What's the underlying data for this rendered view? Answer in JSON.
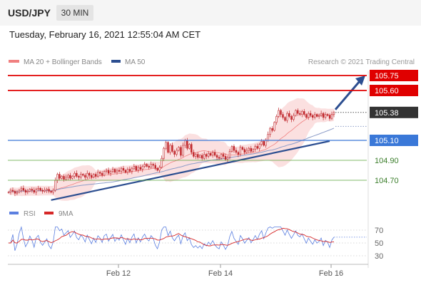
{
  "header": {
    "pair": "USD/JPY",
    "timeframe": "30 MIN"
  },
  "datetime": "Tuesday, February 16, 2021 12:55:04 AM CET",
  "legend": {
    "ma_label": "MA 20 + Bollinger Bands",
    "ma50_label": "MA 50",
    "credit": "Research © 2021 Trading Central",
    "rsi_label": "RSI",
    "rsi_ma_label": "9MA"
  },
  "colors": {
    "resistance": "#e00000",
    "support": "#3a78d8",
    "target": "#5aa53a",
    "price": "#333333",
    "bollinger_fill": "#fadada",
    "ma20": "#f08080",
    "ma50": "#8c9cc8",
    "trendline": "#2c4e90",
    "rsi": "#5b7fe0",
    "rsi_ma": "#d62828",
    "candle": "#c0282d"
  },
  "chart_data": [
    {
      "type": "candlestick",
      "title": "USD/JPY",
      "x_ticks": [
        "Feb 12",
        "Feb 14",
        "Feb 16"
      ],
      "ylim": [
        104.52,
        105.82
      ],
      "levels": [
        {
          "label": "105.75",
          "value": 105.75,
          "kind": "resistance"
        },
        {
          "label": "105.60",
          "value": 105.6,
          "kind": "resistance"
        },
        {
          "label": "105.38",
          "value": 105.38,
          "kind": "price"
        },
        {
          "label": "105.10",
          "value": 105.1,
          "kind": "support"
        },
        {
          "label": "104.90",
          "value": 104.9,
          "kind": "target"
        },
        {
          "label": "104.70",
          "value": 104.7,
          "kind": "target"
        }
      ],
      "close_series": [
        104.58,
        104.6,
        104.59,
        104.57,
        104.58,
        104.6,
        104.62,
        104.6,
        104.58,
        104.59,
        104.61,
        104.6,
        104.58,
        104.61,
        104.62,
        104.6,
        104.59,
        104.6,
        104.61,
        104.59,
        104.58,
        104.6,
        104.7,
        104.76,
        104.72,
        104.74,
        104.71,
        104.73,
        104.75,
        104.72,
        104.74,
        104.77,
        104.74,
        104.73,
        104.76,
        104.75,
        104.73,
        104.77,
        104.75,
        104.73,
        104.76,
        104.74,
        104.78,
        104.77,
        104.75,
        104.79,
        104.8,
        104.77,
        104.79,
        104.81,
        104.78,
        104.8,
        104.79,
        104.82,
        104.8,
        104.78,
        104.81,
        104.79,
        104.82,
        104.84,
        104.8,
        104.83,
        104.81,
        104.84,
        104.86,
        104.84,
        104.83,
        104.86,
        104.85,
        104.82,
        104.8,
        104.83,
        104.92,
        105.02,
        105.08,
        104.98,
        105.05,
        104.99,
        104.96,
        105.0,
        105.03,
        104.95,
        105.05,
        105.1,
        105.02,
        105.06,
        104.98,
        104.94,
        104.96,
        104.93,
        104.95,
        104.92,
        104.96,
        104.94,
        104.97,
        104.95,
        104.98,
        104.95,
        104.93,
        104.92,
        104.96,
        104.94,
        104.91,
        104.93,
        104.99,
        105.04,
        105.0,
        104.98,
        104.96,
        105.03,
        105.01,
        104.98,
        105.0,
        105.02,
        104.99,
        105.01,
        105.04,
        105.02,
        105.06,
        105.09,
        105.05,
        105.1,
        105.16,
        105.22,
        105.2,
        105.28,
        105.34,
        105.4,
        105.36,
        105.33,
        105.3,
        105.37,
        105.34,
        105.31,
        105.35,
        105.4,
        105.37,
        105.36,
        105.39,
        105.36,
        105.33,
        105.37,
        105.35,
        105.33,
        105.36,
        105.34,
        105.35,
        105.37,
        105.33,
        105.36,
        105.35,
        105.32,
        105.36,
        105.38
      ]
    },
    {
      "type": "line",
      "title": "RSI",
      "y_ticks": [
        70,
        50,
        30
      ],
      "ylim": [
        20,
        80
      ],
      "series_names": [
        "RSI",
        "9MA"
      ]
    }
  ]
}
